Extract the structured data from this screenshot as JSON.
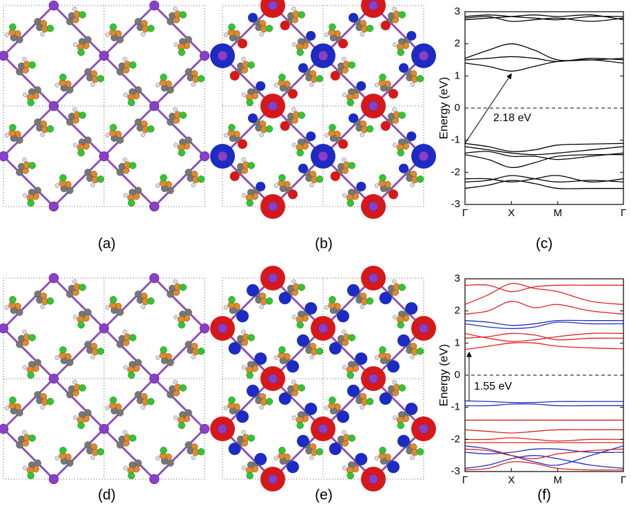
{
  "panel_labels": [
    "(a)",
    "(b)",
    "(c)",
    "(d)",
    "(e)",
    "(f)"
  ],
  "chart_data": [
    {
      "type": "line",
      "ylabel": "Energy (eV)",
      "annotation": "2.18 eV",
      "hline": 0,
      "x": [
        0,
        0.5,
        1,
        1.5,
        2,
        2.71,
        3.414
      ],
      "xlim": [
        0,
        3.414
      ],
      "xticks": [
        {
          "value": 0,
          "label": "Γ"
        },
        {
          "value": 1,
          "label": "X"
        },
        {
          "value": 2,
          "label": "M"
        },
        {
          "value": 3.414,
          "label": "Γ"
        }
      ],
      "ylim": [
        -3,
        3
      ],
      "yticks": [
        -3,
        -2,
        -1,
        0,
        1,
        2,
        3
      ],
      "series": [
        {
          "color": "#000000",
          "values": [
            2.85,
            2.9,
            2.85,
            2.8,
            2.75,
            2.85,
            2.85
          ]
        },
        {
          "color": "#000000",
          "values": [
            2.8,
            2.85,
            2.7,
            2.75,
            2.8,
            2.7,
            2.8
          ]
        },
        {
          "color": "#000000",
          "values": [
            2.75,
            2.8,
            2.85,
            2.9,
            2.85,
            2.9,
            2.75
          ]
        },
        {
          "color": "#000000",
          "values": [
            1.55,
            1.8,
            2.0,
            1.8,
            1.5,
            1.5,
            1.55
          ]
        },
        {
          "color": "#000000",
          "values": [
            1.5,
            1.55,
            1.6,
            1.55,
            1.45,
            1.55,
            1.5
          ]
        },
        {
          "color": "#000000",
          "values": [
            1.4,
            1.3,
            1.15,
            1.3,
            1.45,
            1.5,
            1.4
          ]
        },
        {
          "color": "#000000",
          "values": [
            -1.1,
            -1.2,
            -1.35,
            -1.3,
            -1.15,
            -1.12,
            -1.1
          ]
        },
        {
          "color": "#000000",
          "values": [
            -1.2,
            -1.3,
            -1.4,
            -1.45,
            -1.4,
            -1.3,
            -1.2
          ]
        },
        {
          "color": "#000000",
          "values": [
            -1.45,
            -1.6,
            -1.85,
            -1.7,
            -1.5,
            -1.45,
            -1.45
          ]
        },
        {
          "color": "#000000",
          "values": [
            -1.4,
            -1.35,
            -1.5,
            -1.5,
            -1.6,
            -1.5,
            -1.4
          ]
        },
        {
          "color": "#000000",
          "values": [
            -2.2,
            -2.2,
            -2.3,
            -2.2,
            -2.1,
            -2.3,
            -2.2
          ]
        },
        {
          "color": "#000000",
          "values": [
            -2.3,
            -2.25,
            -2.1,
            -2.2,
            -2.3,
            -2.25,
            -2.3
          ]
        },
        {
          "color": "#000000",
          "values": [
            -2.5,
            -2.4,
            -2.25,
            -2.35,
            -2.5,
            -2.5,
            -2.5
          ]
        }
      ]
    },
    {
      "type": "line",
      "ylabel": "Energy (eV)",
      "annotation": "1.55 eV",
      "hline": 0,
      "x": [
        0,
        0.5,
        1,
        1.5,
        2,
        2.71,
        3.414
      ],
      "xlim": [
        0,
        3.414
      ],
      "xticks": [
        {
          "value": 0,
          "label": "Γ"
        },
        {
          "value": 1,
          "label": "X"
        },
        {
          "value": 2,
          "label": "M"
        },
        {
          "value": 3.414,
          "label": "Γ"
        }
      ],
      "ylim": [
        -3,
        3
      ],
      "yticks": [
        -3,
        -2,
        -1,
        0,
        1,
        2,
        3
      ],
      "series": [
        {
          "color": "#e02020",
          "values": [
            2.8,
            2.8,
            2.6,
            2.75,
            2.8,
            2.8,
            2.8
          ]
        },
        {
          "color": "#e02020",
          "values": [
            2.2,
            2.5,
            2.85,
            2.7,
            2.6,
            2.3,
            2.2
          ]
        },
        {
          "color": "#e02020",
          "values": [
            1.9,
            2.0,
            2.3,
            2.1,
            2.2,
            2.0,
            1.9
          ]
        },
        {
          "color": "#2030c0",
          "values": [
            1.7,
            1.65,
            1.55,
            1.6,
            1.7,
            1.7,
            1.7
          ]
        },
        {
          "color": "#2030c0",
          "values": [
            1.6,
            1.5,
            1.45,
            1.5,
            1.65,
            1.6,
            1.6
          ]
        },
        {
          "color": "#e02020",
          "values": [
            1.3,
            1.15,
            1.05,
            1.1,
            1.2,
            1.3,
            1.3
          ]
        },
        {
          "color": "#e02020",
          "values": [
            1.15,
            1.2,
            1.3,
            1.25,
            1.1,
            1.15,
            1.15
          ]
        },
        {
          "color": "#e02020",
          "values": [
            0.8,
            0.9,
            1.0,
            1.0,
            0.9,
            0.85,
            0.82
          ]
        },
        {
          "color": "#2030c0",
          "values": [
            -0.8,
            -0.82,
            -0.85,
            -0.85,
            -0.82,
            -0.82,
            -0.82
          ]
        },
        {
          "color": "#2030c0",
          "values": [
            -0.95,
            -0.95,
            -0.9,
            -0.9,
            -0.95,
            -0.95,
            -0.95
          ]
        },
        {
          "color": "#e02020",
          "values": [
            -1.4,
            -1.4,
            -1.4,
            -1.4,
            -1.4,
            -1.4,
            -1.4
          ]
        },
        {
          "color": "#e02020",
          "values": [
            -1.7,
            -1.75,
            -1.8,
            -1.75,
            -1.7,
            -1.7,
            -1.7
          ]
        },
        {
          "color": "#e02020",
          "values": [
            -2.0,
            -2.0,
            -1.95,
            -2.0,
            -2.05,
            -2.0,
            -2.0
          ]
        },
        {
          "color": "#e02020",
          "values": [
            -2.1,
            -2.1,
            -2.1,
            -2.1,
            -2.1,
            -2.1,
            -2.1
          ]
        },
        {
          "color": "#2030c0",
          "values": [
            -2.2,
            -2.3,
            -2.5,
            -2.7,
            -2.8,
            -2.5,
            -2.2
          ]
        },
        {
          "color": "#2030c0",
          "values": [
            -2.4,
            -2.45,
            -2.4,
            -2.3,
            -2.3,
            -2.4,
            -2.4
          ]
        },
        {
          "color": "#2030c0",
          "values": [
            -2.9,
            -2.8,
            -2.6,
            -2.5,
            -2.6,
            -2.8,
            -2.9
          ]
        },
        {
          "color": "#e02020",
          "values": [
            -2.3,
            -2.35,
            -2.5,
            -2.6,
            -2.45,
            -2.35,
            -2.3
          ]
        },
        {
          "color": "#e02020",
          "values": [
            -2.95,
            -2.9,
            -2.7,
            -2.75,
            -2.9,
            -2.95,
            -2.95
          ]
        }
      ]
    }
  ]
}
